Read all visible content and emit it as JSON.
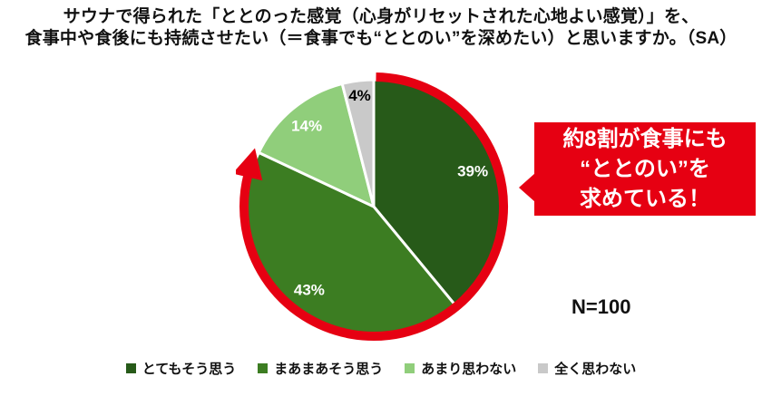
{
  "title": {
    "line1": "サウナで得られた「ととのった感覚（心身がリセットされた心地よい感覚）」を、",
    "line2": "食事中や食後にも持続させたい（＝食事でも“ととのい”を深めたい）と思いますか。（SA）"
  },
  "chart_data": {
    "type": "pie",
    "categories": [
      "とてもそう思う",
      "まあまあそう思う",
      "あまり思わない",
      "全く思わない"
    ],
    "values": [
      39,
      43,
      14,
      4
    ],
    "unit": "%",
    "colors": [
      "#275a19",
      "#3c7d22",
      "#90ce7b",
      "#c9c9c9"
    ],
    "label_colors": [
      "#ffffff",
      "#ffffff",
      "#ffffff",
      "#000000"
    ],
    "start_angle_deg": 0,
    "direction": "clockwise",
    "legend_position": "bottom",
    "annotations": [
      "N=100"
    ],
    "highlight_arc": {
      "start_pct": 0,
      "end_pct": 82,
      "color": "#e60012"
    }
  },
  "callout": {
    "lines": [
      "約8割が食事にも",
      "“ととのい”を",
      "求めている！"
    ],
    "bg_color": "#e60012",
    "text_color": "#ffffff"
  },
  "legend": {
    "items": [
      {
        "label": "とてもそう思う",
        "color": "#275a19"
      },
      {
        "label": "まあまあそう思う",
        "color": "#3c7d22"
      },
      {
        "label": "あまり思わない",
        "color": "#90ce7b"
      },
      {
        "label": "全く思わない",
        "color": "#c9c9c9"
      }
    ]
  }
}
